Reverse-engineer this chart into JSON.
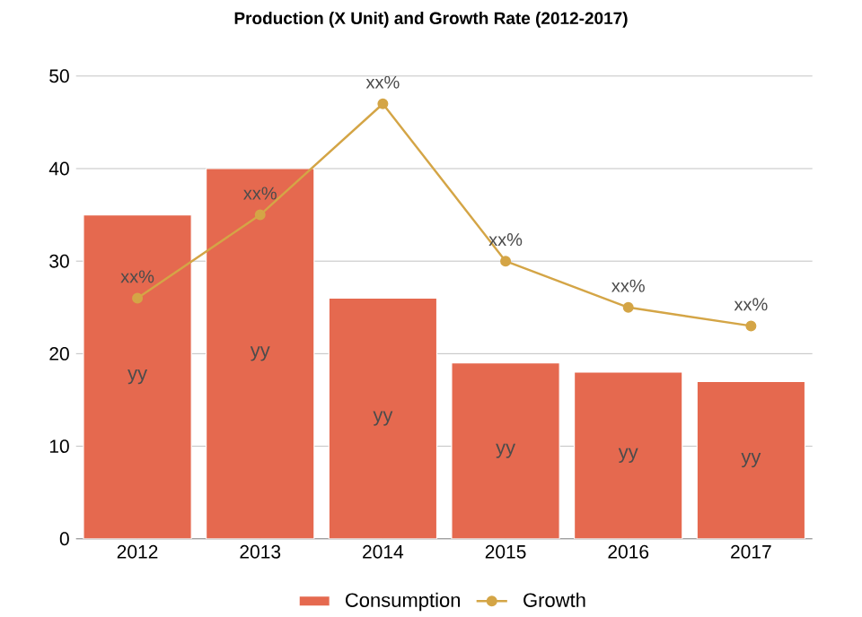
{
  "chart_data": {
    "type": "bar",
    "title": "Production (X Unit) and Growth Rate (2012-2017)",
    "categories": [
      "2012",
      "2013",
      "2014",
      "2015",
      "2016",
      "2017"
    ],
    "series": [
      {
        "name": "Consumption",
        "color": "#e5694f",
        "values": [
          35,
          40,
          26,
          19,
          18,
          17
        ],
        "value_labels": [
          "yy",
          "yy",
          "yy",
          "yy",
          "yy",
          "yy"
        ]
      },
      {
        "name": "Growth",
        "type": "line",
        "color": "#d4a546",
        "marker": "circle",
        "values": [
          26,
          35,
          47,
          30,
          25,
          23
        ],
        "value_labels": [
          "xx%",
          "xx%",
          "xx%",
          "xx%",
          "xx%",
          "xx%"
        ]
      }
    ],
    "ylim": [
      0,
      50
    ],
    "yticks": [
      0,
      10,
      20,
      30,
      40,
      50
    ],
    "grid": "y",
    "legend": "bottom"
  }
}
